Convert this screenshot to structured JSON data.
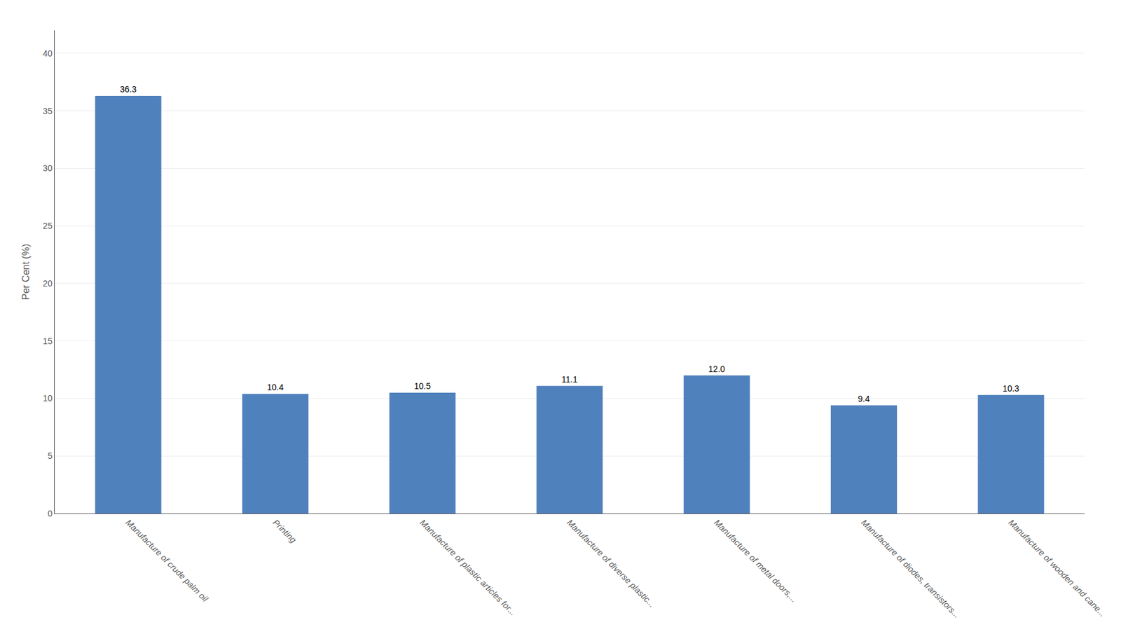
{
  "chart_data": {
    "type": "bar",
    "categories": [
      "Manufacture of crude palm oil",
      "Printing",
      "Manufacture of plastic articles for...",
      "Manufacture of diverse plastic...",
      "Manufacture of metal doors,...",
      "Manufacture of diodes, transistors...",
      "Manufacture of wooden and cane..."
    ],
    "values": [
      36.3,
      10.4,
      10.5,
      11.1,
      12.0,
      9.4,
      10.3
    ],
    "value_labels": [
      "36.3",
      "10.4",
      "10.5",
      "11.1",
      "12.0",
      "9.4",
      "10.3"
    ],
    "color": "#4F81BD",
    "ylabel": "Per Cent (%)",
    "ylim": [
      0,
      42
    ],
    "yticks": [
      0,
      5,
      10,
      15,
      20,
      25,
      30,
      35,
      40
    ],
    "grid": true,
    "data_labels": true
  }
}
